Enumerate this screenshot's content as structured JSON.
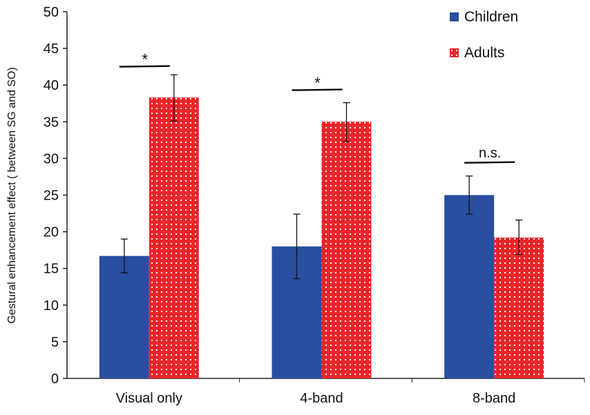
{
  "chart_data": {
    "type": "bar",
    "title": "",
    "xlabel": "",
    "ylabel": "Gestural enhancement effect ( between SG and SO)",
    "ylim": [
      0,
      50
    ],
    "yticks": [
      "0",
      "5",
      "10",
      "15",
      "20",
      "25",
      "30",
      "35",
      "40",
      "45",
      "50"
    ],
    "categories": [
      "Visual only",
      "4-band",
      "8-band"
    ],
    "series": [
      {
        "name": "Children",
        "color": "#2a4ea0",
        "values": [
          16.7,
          18.0,
          25.0
        ],
        "err_low": [
          14.4,
          13.6,
          22.4
        ],
        "err_high": [
          19.0,
          22.4,
          27.6
        ]
      },
      {
        "name": "Adults",
        "color": "#e8262b",
        "pattern": "dotted",
        "values": [
          38.3,
          35.0,
          19.2
        ],
        "err_low": [
          35.1,
          32.3,
          16.9
        ],
        "err_high": [
          41.4,
          37.6,
          21.6
        ]
      }
    ],
    "annotations": [
      {
        "category": "Visual only",
        "label": "*",
        "y": 42.5
      },
      {
        "category": "4-band",
        "label": "*",
        "y": 39.3
      },
      {
        "category": "8-band",
        "label": "n.s.",
        "y": 29.4
      }
    ],
    "legend": "top-right",
    "grid": false
  }
}
